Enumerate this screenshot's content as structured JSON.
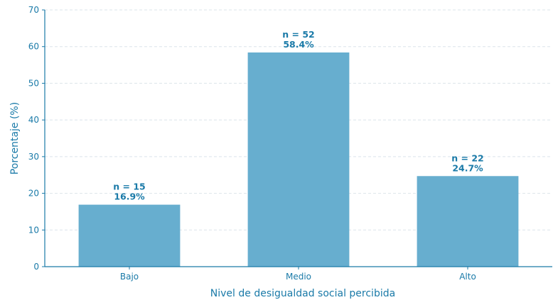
{
  "chart_data": {
    "type": "bar",
    "categories": [
      "Bajo",
      "Medio",
      "Alto"
    ],
    "values": [
      16.9,
      58.4,
      24.7
    ],
    "counts": [
      15,
      52,
      22
    ],
    "count_labels": [
      "n = 15",
      "n = 52",
      "n = 22"
    ],
    "percent_labels": [
      "16.9%",
      "58.4%",
      "24.7%"
    ],
    "xlabel": "Nivel de desigualdad social percibida",
    "ylabel": "Porcentaje (%)",
    "ylim": [
      0,
      70
    ],
    "yticks": [
      0,
      10,
      20,
      30,
      40,
      50,
      60,
      70
    ],
    "grid": true,
    "bar_color": "#67aecf",
    "text_color": "#1a7aa8"
  }
}
